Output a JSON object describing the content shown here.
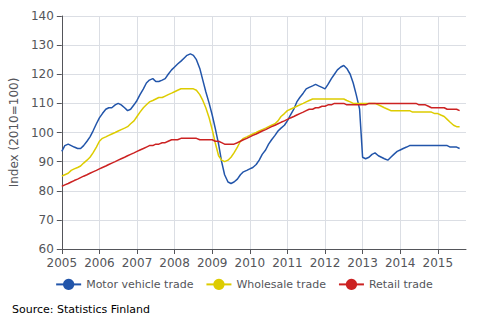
{
  "chart_data": {
    "type": "line",
    "ylabel": "Index (2010=100)",
    "source": "Source: Statistics Finland",
    "xlim": [
      2005.0,
      2015.75
    ],
    "xticks": [
      2005,
      2006,
      2007,
      2008,
      2009,
      2010,
      2011,
      2012,
      2013,
      2014,
      2015
    ],
    "ylim": [
      60,
      140
    ],
    "yticks": [
      60,
      70,
      80,
      90,
      100,
      110,
      120,
      130,
      140
    ],
    "grid": true,
    "legend": "bottom",
    "x": [
      2005.0,
      2005.08,
      2005.17,
      2005.25,
      2005.33,
      2005.42,
      2005.5,
      2005.58,
      2005.67,
      2005.75,
      2005.83,
      2005.92,
      2006.0,
      2006.08,
      2006.17,
      2006.25,
      2006.33,
      2006.42,
      2006.5,
      2006.58,
      2006.67,
      2006.75,
      2006.83,
      2006.92,
      2007.0,
      2007.08,
      2007.17,
      2007.25,
      2007.33,
      2007.42,
      2007.5,
      2007.58,
      2007.67,
      2007.75,
      2007.83,
      2007.92,
      2008.0,
      2008.08,
      2008.17,
      2008.25,
      2008.33,
      2008.42,
      2008.5,
      2008.58,
      2008.67,
      2008.75,
      2008.83,
      2008.92,
      2009.0,
      2009.08,
      2009.17,
      2009.25,
      2009.33,
      2009.42,
      2009.5,
      2009.58,
      2009.67,
      2009.75,
      2009.83,
      2009.92,
      2010.0,
      2010.08,
      2010.17,
      2010.25,
      2010.33,
      2010.42,
      2010.5,
      2010.58,
      2010.67,
      2010.75,
      2010.83,
      2010.92,
      2011.0,
      2011.08,
      2011.17,
      2011.25,
      2011.33,
      2011.42,
      2011.5,
      2011.58,
      2011.67,
      2011.75,
      2011.83,
      2011.92,
      2012.0,
      2012.08,
      2012.17,
      2012.25,
      2012.33,
      2012.42,
      2012.5,
      2012.58,
      2012.67,
      2012.75,
      2012.83,
      2012.92,
      2013.0,
      2013.08,
      2013.17,
      2013.25,
      2013.33,
      2013.42,
      2013.5,
      2013.58,
      2013.67,
      2013.75,
      2013.83,
      2013.92,
      2014.0,
      2014.08,
      2014.17,
      2014.25,
      2014.33,
      2014.42,
      2014.5,
      2014.58,
      2014.67,
      2014.75,
      2014.83,
      2014.92,
      2015.0,
      2015.08,
      2015.17,
      2015.25,
      2015.33,
      2015.42,
      2015.5,
      2015.58
    ],
    "series": [
      {
        "name": "Motor vehicle trade",
        "color": "#2255aa",
        "values": [
          93.5,
          95.5,
          96.0,
          95.5,
          95.0,
          94.5,
          94.5,
          95.5,
          97.0,
          98.5,
          100.5,
          103.0,
          105.0,
          106.5,
          108.0,
          108.5,
          108.5,
          109.5,
          110.0,
          109.5,
          108.5,
          107.5,
          108.0,
          109.5,
          111.0,
          113.0,
          115.0,
          117.0,
          118.0,
          118.5,
          117.5,
          117.5,
          118.0,
          118.5,
          120.0,
          121.5,
          122.5,
          123.5,
          124.5,
          125.5,
          126.5,
          127.0,
          126.5,
          125.0,
          122.0,
          118.0,
          114.0,
          110.0,
          106.0,
          101.5,
          96.0,
          90.0,
          85.5,
          83.0,
          82.5,
          83.0,
          84.0,
          85.5,
          86.5,
          87.0,
          87.5,
          88.0,
          89.0,
          90.5,
          92.5,
          94.0,
          96.0,
          97.5,
          99.0,
          100.5,
          101.5,
          102.5,
          104.0,
          106.0,
          108.0,
          110.5,
          112.0,
          113.5,
          115.0,
          115.5,
          116.0,
          116.5,
          116.0,
          115.5,
          115.0,
          116.5,
          118.5,
          120.0,
          121.5,
          122.5,
          123.0,
          122.0,
          120.0,
          117.0,
          113.0,
          108.0,
          91.5,
          91.0,
          91.5,
          92.5,
          93.0,
          92.0,
          91.5,
          91.0,
          90.5,
          91.5,
          92.5,
          93.5,
          94.0,
          94.5,
          95.0,
          95.5,
          95.5,
          95.5,
          95.5,
          95.5,
          95.5,
          95.5,
          95.5,
          95.5,
          95.5,
          95.5,
          95.5,
          95.5,
          95.0,
          95.0,
          95.0,
          94.5
        ]
      },
      {
        "name": "Wholesale trade",
        "color": "#ddcc00",
        "values": [
          85.0,
          85.5,
          86.0,
          87.0,
          87.5,
          88.0,
          88.5,
          89.5,
          90.5,
          91.5,
          93.0,
          95.0,
          97.0,
          98.0,
          98.5,
          99.0,
          99.5,
          100.0,
          100.5,
          101.0,
          101.5,
          102.0,
          103.0,
          104.0,
          105.5,
          107.0,
          108.5,
          109.5,
          110.5,
          111.0,
          111.5,
          112.0,
          112.0,
          112.5,
          113.0,
          113.5,
          114.0,
          114.5,
          115.0,
          115.0,
          115.0,
          115.0,
          115.0,
          114.5,
          113.0,
          111.0,
          108.5,
          105.0,
          101.0,
          96.5,
          92.0,
          90.5,
          90.0,
          90.5,
          91.5,
          93.0,
          95.0,
          97.0,
          98.0,
          98.5,
          99.0,
          99.5,
          100.0,
          100.5,
          101.0,
          101.5,
          102.0,
          102.5,
          103.0,
          104.0,
          105.5,
          106.5,
          107.5,
          108.0,
          108.5,
          109.0,
          109.5,
          110.0,
          110.5,
          111.0,
          111.5,
          111.5,
          111.5,
          111.5,
          111.5,
          111.5,
          111.5,
          111.5,
          111.5,
          111.5,
          111.5,
          111.0,
          110.5,
          110.0,
          110.0,
          110.0,
          110.0,
          110.0,
          110.0,
          110.0,
          110.0,
          109.5,
          109.0,
          108.5,
          108.0,
          107.5,
          107.5,
          107.5,
          107.5,
          107.5,
          107.5,
          107.5,
          107.0,
          107.0,
          107.0,
          107.0,
          107.0,
          107.0,
          107.0,
          106.5,
          106.5,
          106.0,
          105.5,
          104.5,
          103.5,
          102.5,
          102.0,
          102.0
        ]
      },
      {
        "name": "Retail trade",
        "color": "#cc2222",
        "values": [
          81.5,
          82.0,
          82.5,
          83.0,
          83.5,
          84.0,
          84.5,
          85.0,
          85.5,
          86.0,
          86.5,
          87.0,
          87.5,
          88.0,
          88.5,
          89.0,
          89.5,
          90.0,
          90.5,
          91.0,
          91.5,
          92.0,
          92.5,
          93.0,
          93.5,
          94.0,
          94.5,
          95.0,
          95.5,
          95.5,
          96.0,
          96.0,
          96.5,
          96.5,
          97.0,
          97.5,
          97.5,
          97.5,
          98.0,
          98.0,
          98.0,
          98.0,
          98.0,
          98.0,
          97.5,
          97.5,
          97.5,
          97.5,
          97.5,
          97.0,
          97.0,
          96.5,
          96.0,
          96.0,
          96.0,
          96.0,
          96.5,
          97.0,
          97.5,
          98.0,
          98.5,
          99.0,
          99.5,
          100.0,
          100.5,
          101.0,
          101.5,
          102.0,
          102.5,
          103.0,
          103.5,
          104.0,
          104.5,
          105.0,
          105.5,
          106.0,
          106.5,
          107.0,
          107.5,
          108.0,
          108.0,
          108.5,
          108.5,
          109.0,
          109.0,
          109.5,
          109.5,
          110.0,
          110.0,
          110.0,
          110.0,
          109.5,
          109.5,
          109.5,
          109.5,
          109.5,
          109.5,
          109.5,
          110.0,
          110.0,
          110.0,
          110.0,
          110.0,
          110.0,
          110.0,
          110.0,
          110.0,
          110.0,
          110.0,
          110.0,
          110.0,
          110.0,
          110.0,
          110.0,
          109.5,
          109.5,
          109.5,
          109.0,
          108.5,
          108.5,
          108.5,
          108.5,
          108.5,
          108.0,
          108.0,
          108.0,
          108.0,
          107.5
        ]
      }
    ]
  }
}
